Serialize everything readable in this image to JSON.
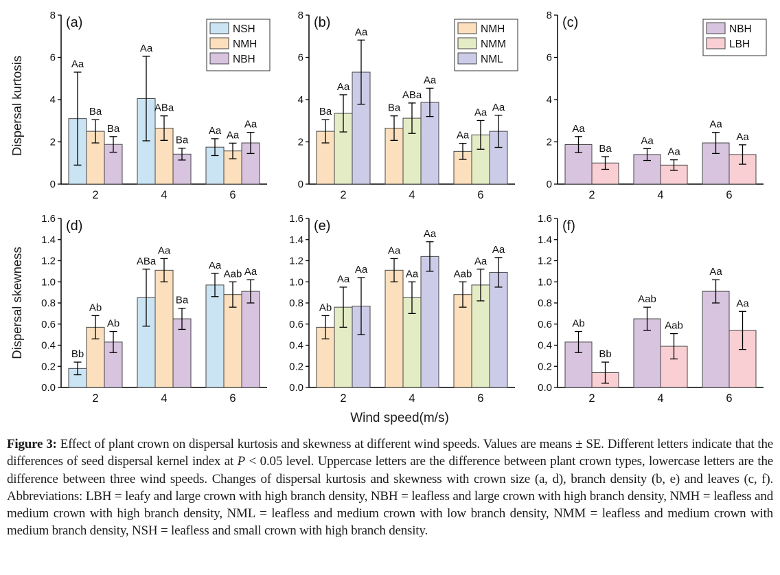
{
  "figure": {
    "xlabel": "Wind speed(m/s)",
    "ylabel_top": "Dispersal kurtosis",
    "ylabel_bottom": "Dispersal skewness"
  },
  "colors": {
    "NSH": "#cbe4f4",
    "NMH": "#fce0bd",
    "NBH": "#d8c4df",
    "NMM": "#e3ecc4",
    "NML": "#cdcce8",
    "LBH": "#f9cfd3",
    "bar_stroke": "#444444",
    "error_stroke": "#000000",
    "axis": "#000000"
  },
  "chart_data": [
    {
      "type": "bar",
      "id": "a",
      "tag": "(a)",
      "ylim": [
        0,
        8
      ],
      "yticks": [
        "0",
        "2",
        "4",
        "6",
        "8"
      ],
      "categories": [
        "2",
        "4",
        "6"
      ],
      "legend": [
        "NSH",
        "NMH",
        "NBH"
      ],
      "legend_position": "top-right",
      "series": [
        {
          "name": "NSH",
          "values": [
            3.1,
            4.05,
            1.75
          ],
          "errors": [
            2.2,
            2.0,
            0.4
          ],
          "letters": [
            "Aa",
            "Aa",
            "Aa"
          ]
        },
        {
          "name": "NMH",
          "values": [
            2.5,
            2.65,
            1.57
          ],
          "errors": [
            0.55,
            0.58,
            0.37
          ],
          "letters": [
            "Ba",
            "ABa",
            "Aa"
          ]
        },
        {
          "name": "NBH",
          "values": [
            1.88,
            1.42,
            1.95
          ],
          "errors": [
            0.37,
            0.28,
            0.5
          ],
          "letters": [
            "Ba",
            "Ba",
            "Aa"
          ]
        }
      ]
    },
    {
      "type": "bar",
      "id": "b",
      "tag": "(b)",
      "ylim": [
        0,
        8
      ],
      "yticks": [
        "0",
        "2",
        "4",
        "6",
        "8"
      ],
      "categories": [
        "2",
        "4",
        "6"
      ],
      "legend": [
        "NMH",
        "NMM",
        "NML"
      ],
      "legend_position": "top-right",
      "series": [
        {
          "name": "NMH",
          "values": [
            2.5,
            2.65,
            1.55
          ],
          "errors": [
            0.55,
            0.58,
            0.38
          ],
          "letters": [
            "Ba",
            "Ba",
            "Aa"
          ]
        },
        {
          "name": "NMM",
          "values": [
            3.35,
            3.12,
            2.33
          ],
          "errors": [
            0.88,
            0.72,
            0.68
          ],
          "letters": [
            "Aa",
            "ABa",
            "Aa"
          ]
        },
        {
          "name": "NML",
          "values": [
            5.3,
            3.87,
            2.5
          ],
          "errors": [
            1.52,
            0.67,
            0.76
          ],
          "letters": [
            "Aa",
            "Aa",
            "Aa"
          ]
        }
      ]
    },
    {
      "type": "bar",
      "id": "c",
      "tag": "(c)",
      "ylim": [
        0,
        8
      ],
      "yticks": [
        "0",
        "2",
        "4",
        "6",
        "8"
      ],
      "categories": [
        "2",
        "4",
        "6"
      ],
      "legend": [
        "NBH",
        "LBH"
      ],
      "legend_position": "top-right",
      "series": [
        {
          "name": "NBH",
          "values": [
            1.87,
            1.4,
            1.95
          ],
          "errors": [
            0.38,
            0.28,
            0.5
          ],
          "letters": [
            "Aa",
            "Aa",
            "Aa"
          ]
        },
        {
          "name": "LBH",
          "values": [
            1.0,
            0.9,
            1.4
          ],
          "errors": [
            0.3,
            0.25,
            0.46
          ],
          "letters": [
            "Ba",
            "Aa",
            "Aa"
          ]
        }
      ]
    },
    {
      "type": "bar",
      "id": "d",
      "tag": "(d)",
      "ylim": [
        0,
        1.6
      ],
      "yticks": [
        "0.0",
        "0.2",
        "0.4",
        "0.6",
        "0.8",
        "1.0",
        "1.2",
        "1.4",
        "1.6"
      ],
      "categories": [
        "2",
        "4",
        "6"
      ],
      "legend": null,
      "legend_position": null,
      "series": [
        {
          "name": "NSH",
          "values": [
            0.18,
            0.85,
            0.97
          ],
          "errors": [
            0.06,
            0.27,
            0.11
          ],
          "letters": [
            "Bb",
            "ABa",
            "Aa"
          ]
        },
        {
          "name": "NMH",
          "values": [
            0.57,
            1.11,
            0.88
          ],
          "errors": [
            0.11,
            0.11,
            0.12
          ],
          "letters": [
            "Ab",
            "Aa",
            "Aab"
          ]
        },
        {
          "name": "NBH",
          "values": [
            0.43,
            0.65,
            0.91
          ],
          "errors": [
            0.1,
            0.1,
            0.11
          ],
          "letters": [
            "Ab",
            "Ba",
            "Aa"
          ]
        }
      ]
    },
    {
      "type": "bar",
      "id": "e",
      "tag": "(e)",
      "ylim": [
        0,
        1.6
      ],
      "yticks": [
        "0.0",
        "0.2",
        "0.4",
        "0.6",
        "0.8",
        "1.0",
        "1.2",
        "1.4",
        "1.6"
      ],
      "categories": [
        "2",
        "4",
        "6"
      ],
      "legend": null,
      "legend_position": null,
      "series": [
        {
          "name": "NMH",
          "values": [
            0.57,
            1.11,
            0.88
          ],
          "errors": [
            0.11,
            0.11,
            0.12
          ],
          "letters": [
            "Ab",
            "Aa",
            "Aab"
          ]
        },
        {
          "name": "NMM",
          "values": [
            0.76,
            0.85,
            0.97
          ],
          "errors": [
            0.19,
            0.15,
            0.15
          ],
          "letters": [
            "Aa",
            "Aa",
            "Aa"
          ]
        },
        {
          "name": "NML",
          "values": [
            0.77,
            1.24,
            1.09
          ],
          "errors": [
            0.27,
            0.14,
            0.14
          ],
          "letters": [
            "Aa",
            "Aa",
            "Aa"
          ]
        }
      ]
    },
    {
      "type": "bar",
      "id": "f",
      "tag": "(f)",
      "ylim": [
        0,
        1.6
      ],
      "yticks": [
        "0.0",
        "0.2",
        "0.4",
        "0.6",
        "0.8",
        "1.0",
        "1.2",
        "1.4",
        "1.6"
      ],
      "categories": [
        "2",
        "4",
        "6"
      ],
      "legend": null,
      "legend_position": null,
      "series": [
        {
          "name": "NBH",
          "values": [
            0.43,
            0.65,
            0.91
          ],
          "errors": [
            0.1,
            0.11,
            0.11
          ],
          "letters": [
            "Ab",
            "Aab",
            "Aa"
          ]
        },
        {
          "name": "LBH",
          "values": [
            0.14,
            0.39,
            0.54
          ],
          "errors": [
            0.1,
            0.12,
            0.18
          ],
          "letters": [
            "Bb",
            "Aab",
            "Aa"
          ]
        }
      ]
    }
  ],
  "caption": {
    "label": "Figure 3:",
    "part1": " Effect of plant crown on dispersal kurtosis and skewness at different wind speeds. Values are means ± SE. Different letters indicate that the differences of seed dispersal kernel index at ",
    "p_symbol": "P",
    "part2": " < 0.05 level. Uppercase letters are the difference between plant crown types, lowercase letters are the difference between three wind speeds. Changes of dispersal kurtosis and skewness with crown size (a, d), branch density (b, e) and leaves (c, f). Abbreviations: LBH = leafy and large crown with high branch density, NBH = leafless and large crown with high branch density, NMH = leafless and medium crown with high branch density, NML = leafless and medium crown with low branch density, NMM = leafless and medium crown with medium branch density, NSH = leafless and small crown with high branch density."
  }
}
